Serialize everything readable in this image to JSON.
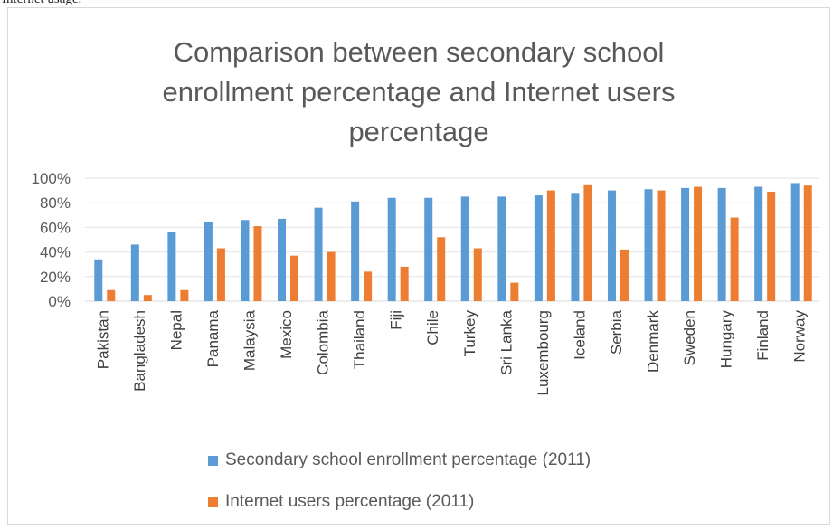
{
  "caption": "Internet usage.",
  "chart_data": {
    "type": "bar",
    "title": [
      "Comparison between secondary school",
      "enrollment percentage and Internet users",
      "percentage"
    ],
    "xlabel": "",
    "ylabel": "",
    "ylim": [
      0,
      100
    ],
    "yticks": [
      "0%",
      "20%",
      "40%",
      "60%",
      "80%",
      "100%"
    ],
    "grid": true,
    "legend_position": "bottom",
    "categories": [
      "Pakistan",
      "Bangladesh",
      "Nepal",
      "Panama",
      "Malaysia",
      "Mexico",
      "Colombia",
      "Thailand",
      "Fiji",
      "Chile",
      "Turkey",
      "Sri Lanka",
      "Luxembourg",
      "Iceland",
      "Serbia",
      "Denmark",
      "Sweden",
      "Hungary",
      "Finland",
      "Norway"
    ],
    "series": [
      {
        "name": "Secondary school enrollment percentage (2011)",
        "color": "#5b9bd5",
        "values": [
          34,
          46,
          56,
          64,
          66,
          67,
          76,
          81,
          84,
          84,
          85,
          85,
          86,
          88,
          90,
          91,
          92,
          92,
          93,
          96
        ]
      },
      {
        "name": "Internet users percentage (2011)",
        "color": "#ed7d31",
        "values": [
          9,
          5,
          9,
          43,
          61,
          37,
          40,
          24,
          28,
          52,
          43,
          15,
          90,
          95,
          42,
          90,
          93,
          68,
          89,
          94
        ]
      }
    ]
  }
}
